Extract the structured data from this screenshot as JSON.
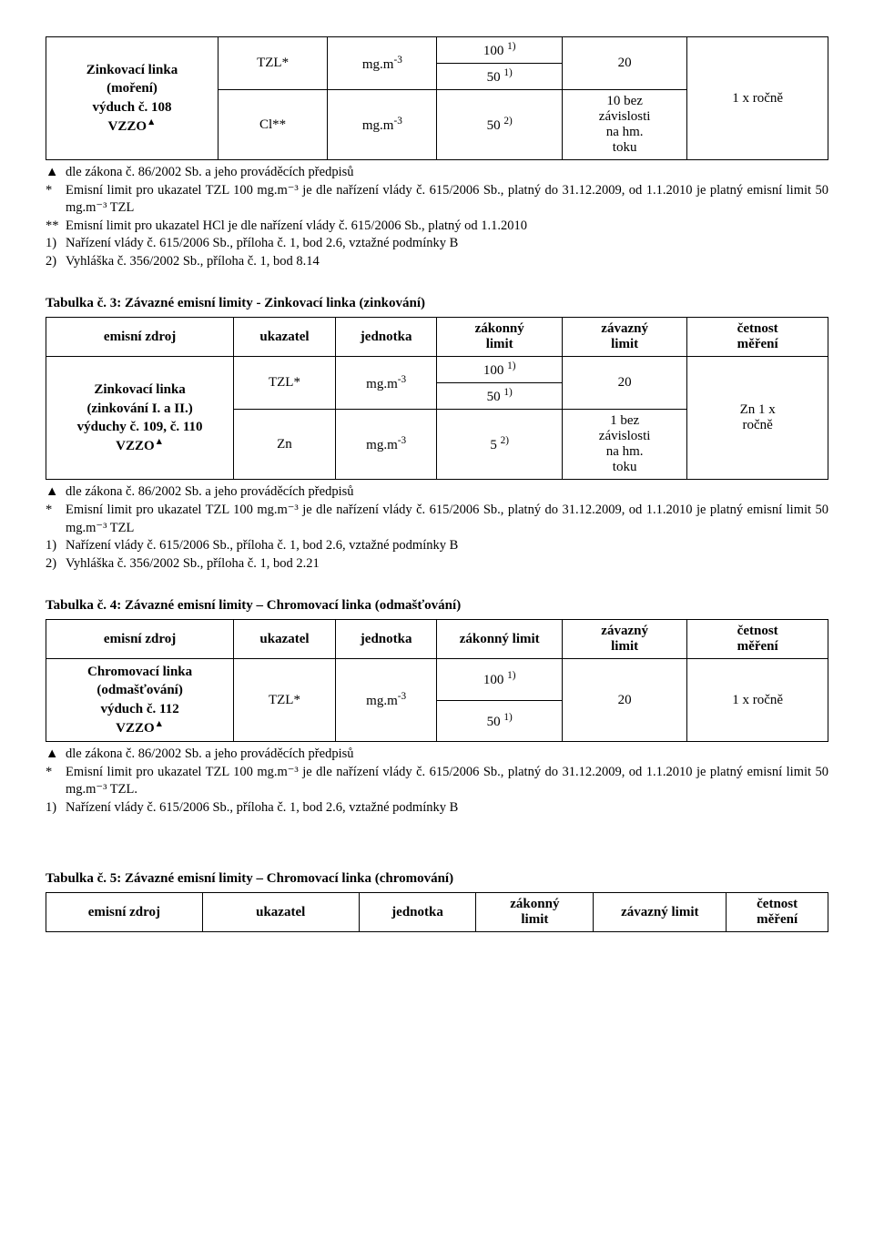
{
  "table1": {
    "source_cell": "Zinkovací linka\n(moření)\nvýduch č. 108\nVZZO",
    "row_tzl": {
      "ukazatel": "TZL*",
      "jednotka": "mg.m",
      "exp": "-3",
      "lim_a": "100",
      "lim_a_sup": "1)",
      "lim_b": "50",
      "lim_b_sup": "1)",
      "zav": "20"
    },
    "row_cl": {
      "ukazatel": "Cl**",
      "jednotka": "mg.m",
      "exp": "-3",
      "lim_val": "50",
      "lim_sup": "2)",
      "zav": "10 bez\nzávislosti\nna hm.\ntoku"
    },
    "cetnost": "1 x ročně"
  },
  "notes1": {
    "a": {
      "marker": "▲",
      "text": "dle zákona č. 86/2002 Sb. a jeho prováděcích předpisů"
    },
    "b": {
      "marker": "*",
      "text": "Emisní limit pro ukazatel TZL 100 mg.m⁻³ je dle nařízení vlády č. 615/2006 Sb., platný do 31.12.2009, od 1.1.2010 je platný emisní limit 50 mg.m⁻³ TZL"
    },
    "c": {
      "marker": "**",
      "text": "Emisní limit pro ukazatel HCl je dle nařízení vlády č. 615/2006 Sb., platný od 1.1.2010"
    },
    "d": {
      "marker": "1)",
      "text": "Nařízení vlády č. 615/2006 Sb., příloha č. 1, bod 2.6, vztažné podmínky B"
    },
    "e": {
      "marker": "2)",
      "text": "Vyhláška č. 356/2002 Sb., příloha č. 1, bod 8.14"
    }
  },
  "table3": {
    "title": "Tabulka č. 3: Závazné emisní limity - Zinkovací linka (zinkování)",
    "headers": {
      "h1": "emisní zdroj",
      "h2": "ukazatel",
      "h3": "jednotka",
      "h4": "zákonný\nlimit",
      "h5": "závazný\nlimit",
      "h6": "četnost\nměření"
    },
    "source_cell": "Zinkovací linka\n(zinkování I. a II.)\nvýduchy č. 109, č. 110\nVZZO",
    "row_tzl": {
      "ukazatel": "TZL*",
      "jednotka": "mg.m",
      "exp": "-3",
      "lim_a": "100",
      "lim_a_sup": "1)",
      "lim_b": "50",
      "lim_b_sup": "1)",
      "zav": "20"
    },
    "row_zn": {
      "ukazatel": "Zn",
      "jednotka": "mg.m",
      "exp": "-3",
      "lim_val": "5",
      "lim_sup": "2)",
      "zav": "1 bez\nzávislosti\nna hm.\ntoku"
    },
    "cetnost": "Zn 1 x\nročně"
  },
  "notes3": {
    "a": {
      "marker": "▲",
      "text": "dle zákona č. 86/2002 Sb. a jeho prováděcích předpisů"
    },
    "b": {
      "marker": "*",
      "text": "Emisní limit pro ukazatel TZL 100 mg.m⁻³ je dle nařízení vlády č. 615/2006 Sb., platný do 31.12.2009, od 1.1.2010 je platný emisní limit 50 mg.m⁻³ TZL"
    },
    "c": {
      "marker": "1)",
      "text": "Nařízení vlády č. 615/2006 Sb., příloha č. 1, bod 2.6, vztažné podmínky B"
    },
    "d": {
      "marker": "2)",
      "text": "Vyhláška č. 356/2002 Sb., příloha č. 1, bod 2.21"
    }
  },
  "table4": {
    "title": "Tabulka č. 4: Závazné emisní limity – Chromovací linka (odmašťování)",
    "headers": {
      "h1": "emisní zdroj",
      "h2": "ukazatel",
      "h3": "jednotka",
      "h4": "zákonný limit",
      "h5": "závazný\nlimit",
      "h6": "četnost\nměření"
    },
    "source_cell": "Chromovací linka\n(odmašťování)\nvýduch č. 112\nVZZO",
    "row_tzl": {
      "ukazatel": "TZL*",
      "jednotka": "mg.m",
      "exp": "-3",
      "lim_a": "100",
      "lim_a_sup": "1)",
      "lim_b": "50",
      "lim_b_sup": "1)",
      "zav": "20"
    },
    "cetnost": "1 x ročně"
  },
  "notes4": {
    "a": {
      "marker": "▲",
      "text": "dle zákona č. 86/2002 Sb. a jeho prováděcích předpisů"
    },
    "b": {
      "marker": "*",
      "text": "Emisní limit pro ukazatel TZL 100 mg.m⁻³ je dle nařízení vlády č. 615/2006 Sb., platný do 31.12.2009, od 1.1.2010 je platný emisní limit 50 mg.m⁻³ TZL."
    },
    "c": {
      "marker": "1)",
      "text": "Nařízení vlády č. 615/2006 Sb., příloha č. 1, bod 2.6, vztažné podmínky B"
    }
  },
  "table5": {
    "title": "Tabulka č. 5: Závazné emisní limity – Chromovací linka (chromování)",
    "headers": {
      "h1": "emisní zdroj",
      "h2": "ukazatel",
      "h3": "jednotka",
      "h4": "zákonný\nlimit",
      "h5": "závazný limit",
      "h6": "četnost\nměření"
    }
  }
}
